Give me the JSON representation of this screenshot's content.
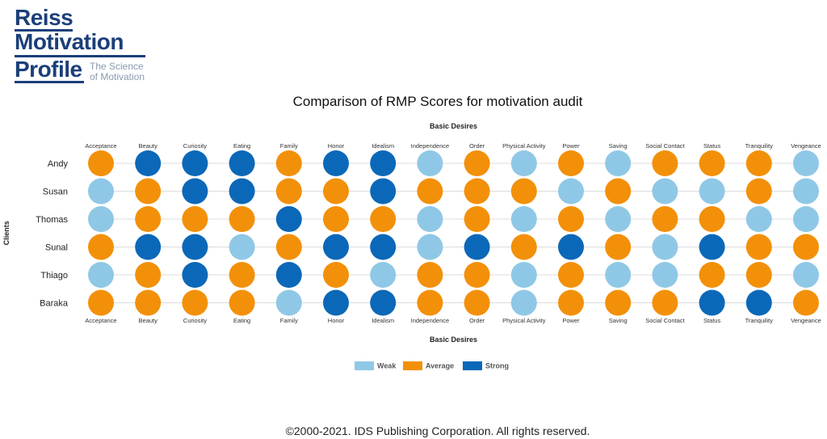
{
  "logo": {
    "line1": "Reiss",
    "line2": "Motivation",
    "line3": "Profile",
    "tagline1": "The Science",
    "tagline2": "of Motivation"
  },
  "footer": "©2000-2021. IDS Publishing Corporation. All rights reserved.",
  "chart_data": {
    "type": "heatmap",
    "title": "Comparison of RMP Scores for motivation audit",
    "xlabel": "Basic Desires",
    "ylabel": "Clients",
    "x_categories": [
      "Acceptance",
      "Beauty",
      "Curiosity",
      "Eating",
      "Family",
      "Honor",
      "Idealism",
      "Independence",
      "Order",
      "Physical Activity",
      "Power",
      "Saving",
      "Social Contact",
      "Status",
      "Tranquility",
      "Vengeance"
    ],
    "y_categories": [
      "Andy",
      "Susan",
      "Thomas",
      "Sunal",
      "Thiago",
      "Baraka"
    ],
    "levels": [
      "Weak",
      "Average",
      "Strong"
    ],
    "colors": {
      "Weak": "#8fc8e6",
      "Average": "#f39009",
      "Strong": "#0b68b8"
    },
    "legend_position": "bottom-center",
    "values": [
      [
        "Average",
        "Strong",
        "Strong",
        "Strong",
        "Average",
        "Strong",
        "Strong",
        "Weak",
        "Average",
        "Weak",
        "Average",
        "Weak",
        "Average",
        "Average",
        "Average",
        "Weak"
      ],
      [
        "Weak",
        "Average",
        "Strong",
        "Strong",
        "Average",
        "Average",
        "Strong",
        "Average",
        "Average",
        "Average",
        "Weak",
        "Average",
        "Weak",
        "Weak",
        "Average",
        "Weak"
      ],
      [
        "Weak",
        "Average",
        "Average",
        "Average",
        "Strong",
        "Average",
        "Average",
        "Weak",
        "Average",
        "Weak",
        "Average",
        "Weak",
        "Average",
        "Average",
        "Weak",
        "Weak"
      ],
      [
        "Average",
        "Strong",
        "Strong",
        "Weak",
        "Average",
        "Strong",
        "Strong",
        "Weak",
        "Strong",
        "Average",
        "Strong",
        "Average",
        "Weak",
        "Strong",
        "Average",
        "Average"
      ],
      [
        "Weak",
        "Average",
        "Strong",
        "Average",
        "Strong",
        "Average",
        "Weak",
        "Average",
        "Average",
        "Weak",
        "Average",
        "Weak",
        "Weak",
        "Average",
        "Average",
        "Weak"
      ],
      [
        "Average",
        "Average",
        "Average",
        "Average",
        "Weak",
        "Strong",
        "Strong",
        "Average",
        "Average",
        "Weak",
        "Average",
        "Average",
        "Average",
        "Strong",
        "Strong",
        "Average"
      ]
    ]
  }
}
